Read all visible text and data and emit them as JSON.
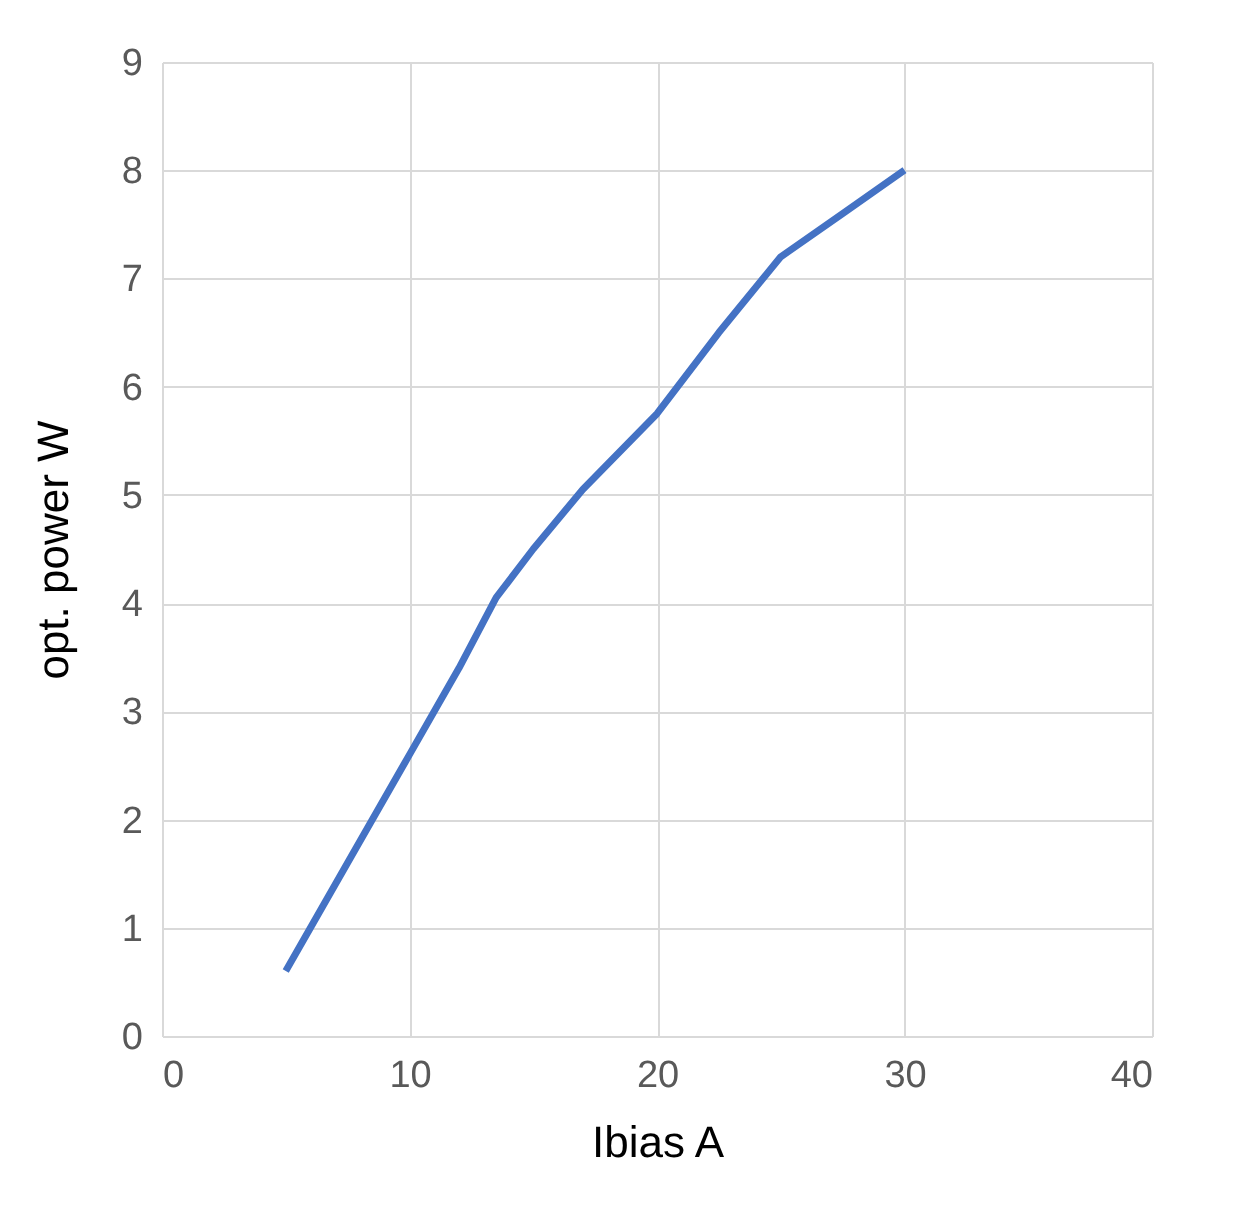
{
  "chart_data": {
    "type": "line",
    "xlabel": "Ibias A",
    "ylabel": "opt. power W",
    "x": [
      5,
      7.5,
      10,
      12,
      13.5,
      15,
      17,
      20,
      22.5,
      25,
      27.5,
      30
    ],
    "series": [
      {
        "color": "#4472c4",
        "values": [
          0.6,
          1.6,
          2.6,
          3.4,
          4.05,
          4.5,
          5.05,
          5.75,
          6.5,
          7.2,
          7.6,
          8.0
        ]
      }
    ],
    "xlim": [
      0,
      40
    ],
    "xticks": [
      0,
      10,
      20,
      30,
      40
    ],
    "ylim": [
      0,
      9
    ],
    "yticks": [
      0,
      1,
      2,
      3,
      4,
      5,
      6,
      7,
      8,
      9
    ],
    "grid": true,
    "legend": false
  }
}
